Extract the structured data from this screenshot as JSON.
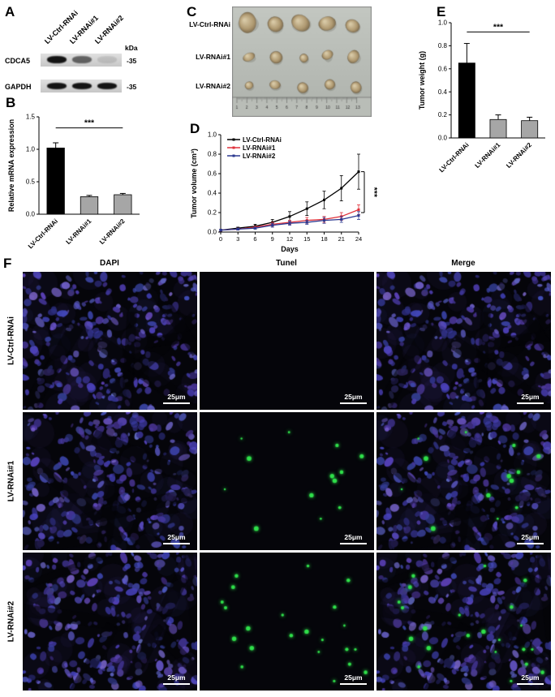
{
  "groups": [
    "LV-Ctrl-RNAi",
    "LV-RNAi#1",
    "LV-RNAi#2"
  ],
  "panelA": {
    "label": "A",
    "kda_label": "kDa",
    "rows": [
      {
        "protein": "CDCA5",
        "marker": "-35",
        "band_intensities": [
          1.0,
          0.6,
          0.12
        ]
      },
      {
        "protein": "GAPDH",
        "marker": "-35",
        "band_intensities": [
          1.0,
          1.0,
          1.0
        ]
      }
    ]
  },
  "panelB": {
    "label": "B"
  },
  "panelC": {
    "label": "C",
    "ruler_numbers": [
      1,
      2,
      3,
      4,
      5,
      6,
      7,
      8,
      9,
      10,
      11,
      12,
      13
    ]
  },
  "panelD": {
    "label": "D"
  },
  "panelE": {
    "label": "E"
  },
  "panelF": {
    "label": "F",
    "columns": [
      "DAPI",
      "Tunel",
      "Merge"
    ],
    "rows": [
      "LV-Ctrl-RNAi",
      "LV-RNAi#1",
      "LV-RNAi#2"
    ],
    "scale_label": "25μm",
    "tunel_dot_counts": [
      0,
      13,
      22
    ],
    "colors": {
      "dapi_nuclei": "#4545b8",
      "tunel_positive": "#2fe04a"
    }
  },
  "chart_data": [
    {
      "id": "panelB-chart",
      "type": "bar",
      "ylabel": "Relative mRNA expression",
      "categories": [
        "LV-Ctrl-RNAi",
        "LV-RNAi#1",
        "LV-RNAi#2"
      ],
      "values": [
        1.02,
        0.27,
        0.3
      ],
      "errors": [
        0.08,
        0.02,
        0.02
      ],
      "colors": [
        "#000000",
        "#a6a6a6",
        "#a6a6a6"
      ],
      "ylim": [
        0,
        1.5
      ],
      "yticks": [
        0.0,
        0.5,
        1.0,
        1.5
      ],
      "significance": {
        "label": "***",
        "from": 0,
        "to": 2,
        "y": 1.33
      }
    },
    {
      "id": "panelD-chart",
      "type": "line",
      "xlabel": "Days",
      "ylabel": "Tumor volume (cm³)",
      "x": [
        0,
        3,
        6,
        9,
        12,
        15,
        18,
        21,
        24
      ],
      "series": [
        {
          "name": "LV-Ctrl-RNAi",
          "color": "#000000",
          "values": [
            0.02,
            0.04,
            0.06,
            0.1,
            0.16,
            0.24,
            0.33,
            0.45,
            0.62
          ],
          "errors": [
            0.01,
            0.01,
            0.02,
            0.03,
            0.05,
            0.07,
            0.09,
            0.13,
            0.18
          ]
        },
        {
          "name": "LV-RNAi#1",
          "color": "#e0313a",
          "values": [
            0.02,
            0.03,
            0.05,
            0.08,
            0.1,
            0.12,
            0.13,
            0.16,
            0.23
          ],
          "errors": [
            0.01,
            0.01,
            0.01,
            0.02,
            0.02,
            0.03,
            0.03,
            0.04,
            0.05
          ]
        },
        {
          "name": "LV-RNAi#2",
          "color": "#2b3990",
          "values": [
            0.02,
            0.03,
            0.04,
            0.07,
            0.09,
            0.1,
            0.12,
            0.13,
            0.17
          ],
          "errors": [
            0.01,
            0.01,
            0.01,
            0.02,
            0.02,
            0.02,
            0.03,
            0.03,
            0.04
          ]
        }
      ],
      "ylim": [
        0,
        1.0
      ],
      "yticks": [
        0.0,
        0.2,
        0.4,
        0.6,
        0.8,
        1.0
      ],
      "significance": {
        "label": "***"
      },
      "legend_position": "top-left"
    },
    {
      "id": "panelE-chart",
      "type": "bar",
      "ylabel": "Tumor weight (g)",
      "categories": [
        "LV-Ctrl-RNAi",
        "LV-RNAi#1",
        "LV-RNAi#2"
      ],
      "values": [
        0.65,
        0.16,
        0.15
      ],
      "errors": [
        0.17,
        0.04,
        0.03
      ],
      "colors": [
        "#000000",
        "#a6a6a6",
        "#a6a6a6"
      ],
      "ylim": [
        0,
        1.0
      ],
      "yticks": [
        0.0,
        0.2,
        0.4,
        0.6,
        0.8,
        1.0
      ],
      "significance": {
        "label": "***",
        "from": 0,
        "to": 2,
        "y": 0.92
      }
    }
  ]
}
